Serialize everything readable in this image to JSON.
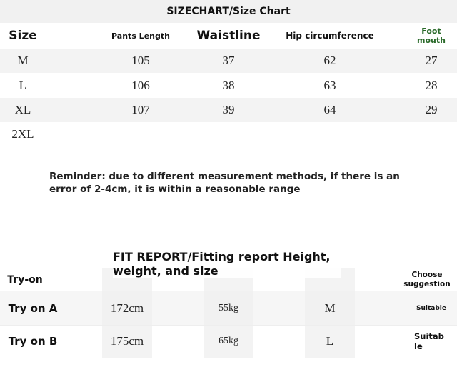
{
  "size_chart": {
    "title": "SIZECHART/Size Chart",
    "header": [
      "Size",
      "Pants Length",
      "Waistline",
      "Hip circumference",
      "Foot mouth"
    ],
    "rows": [
      [
        "M",
        "105",
        "37",
        "62",
        "27"
      ],
      [
        "L",
        "106",
        "38",
        "63",
        "28"
      ],
      [
        "XL",
        "107",
        "39",
        "64",
        "29"
      ],
      [
        "2XL"
      ]
    ]
  },
  "reminder": "Reminder: due to different measurement methods, if there is an error of 2-4cm, it is within a reasonable range",
  "fit_report": {
    "title": "FIT REPORT/Fitting report Height, weight, and size",
    "header": {
      "label": "Try-on",
      "suggestion": "Choose suggestion"
    },
    "rows": [
      [
        "Try on A",
        "172cm",
        "55kg",
        "M",
        "Suitable"
      ],
      [
        "Try on B",
        "175cm",
        "65kg",
        "L",
        "Suitable"
      ]
    ]
  }
}
